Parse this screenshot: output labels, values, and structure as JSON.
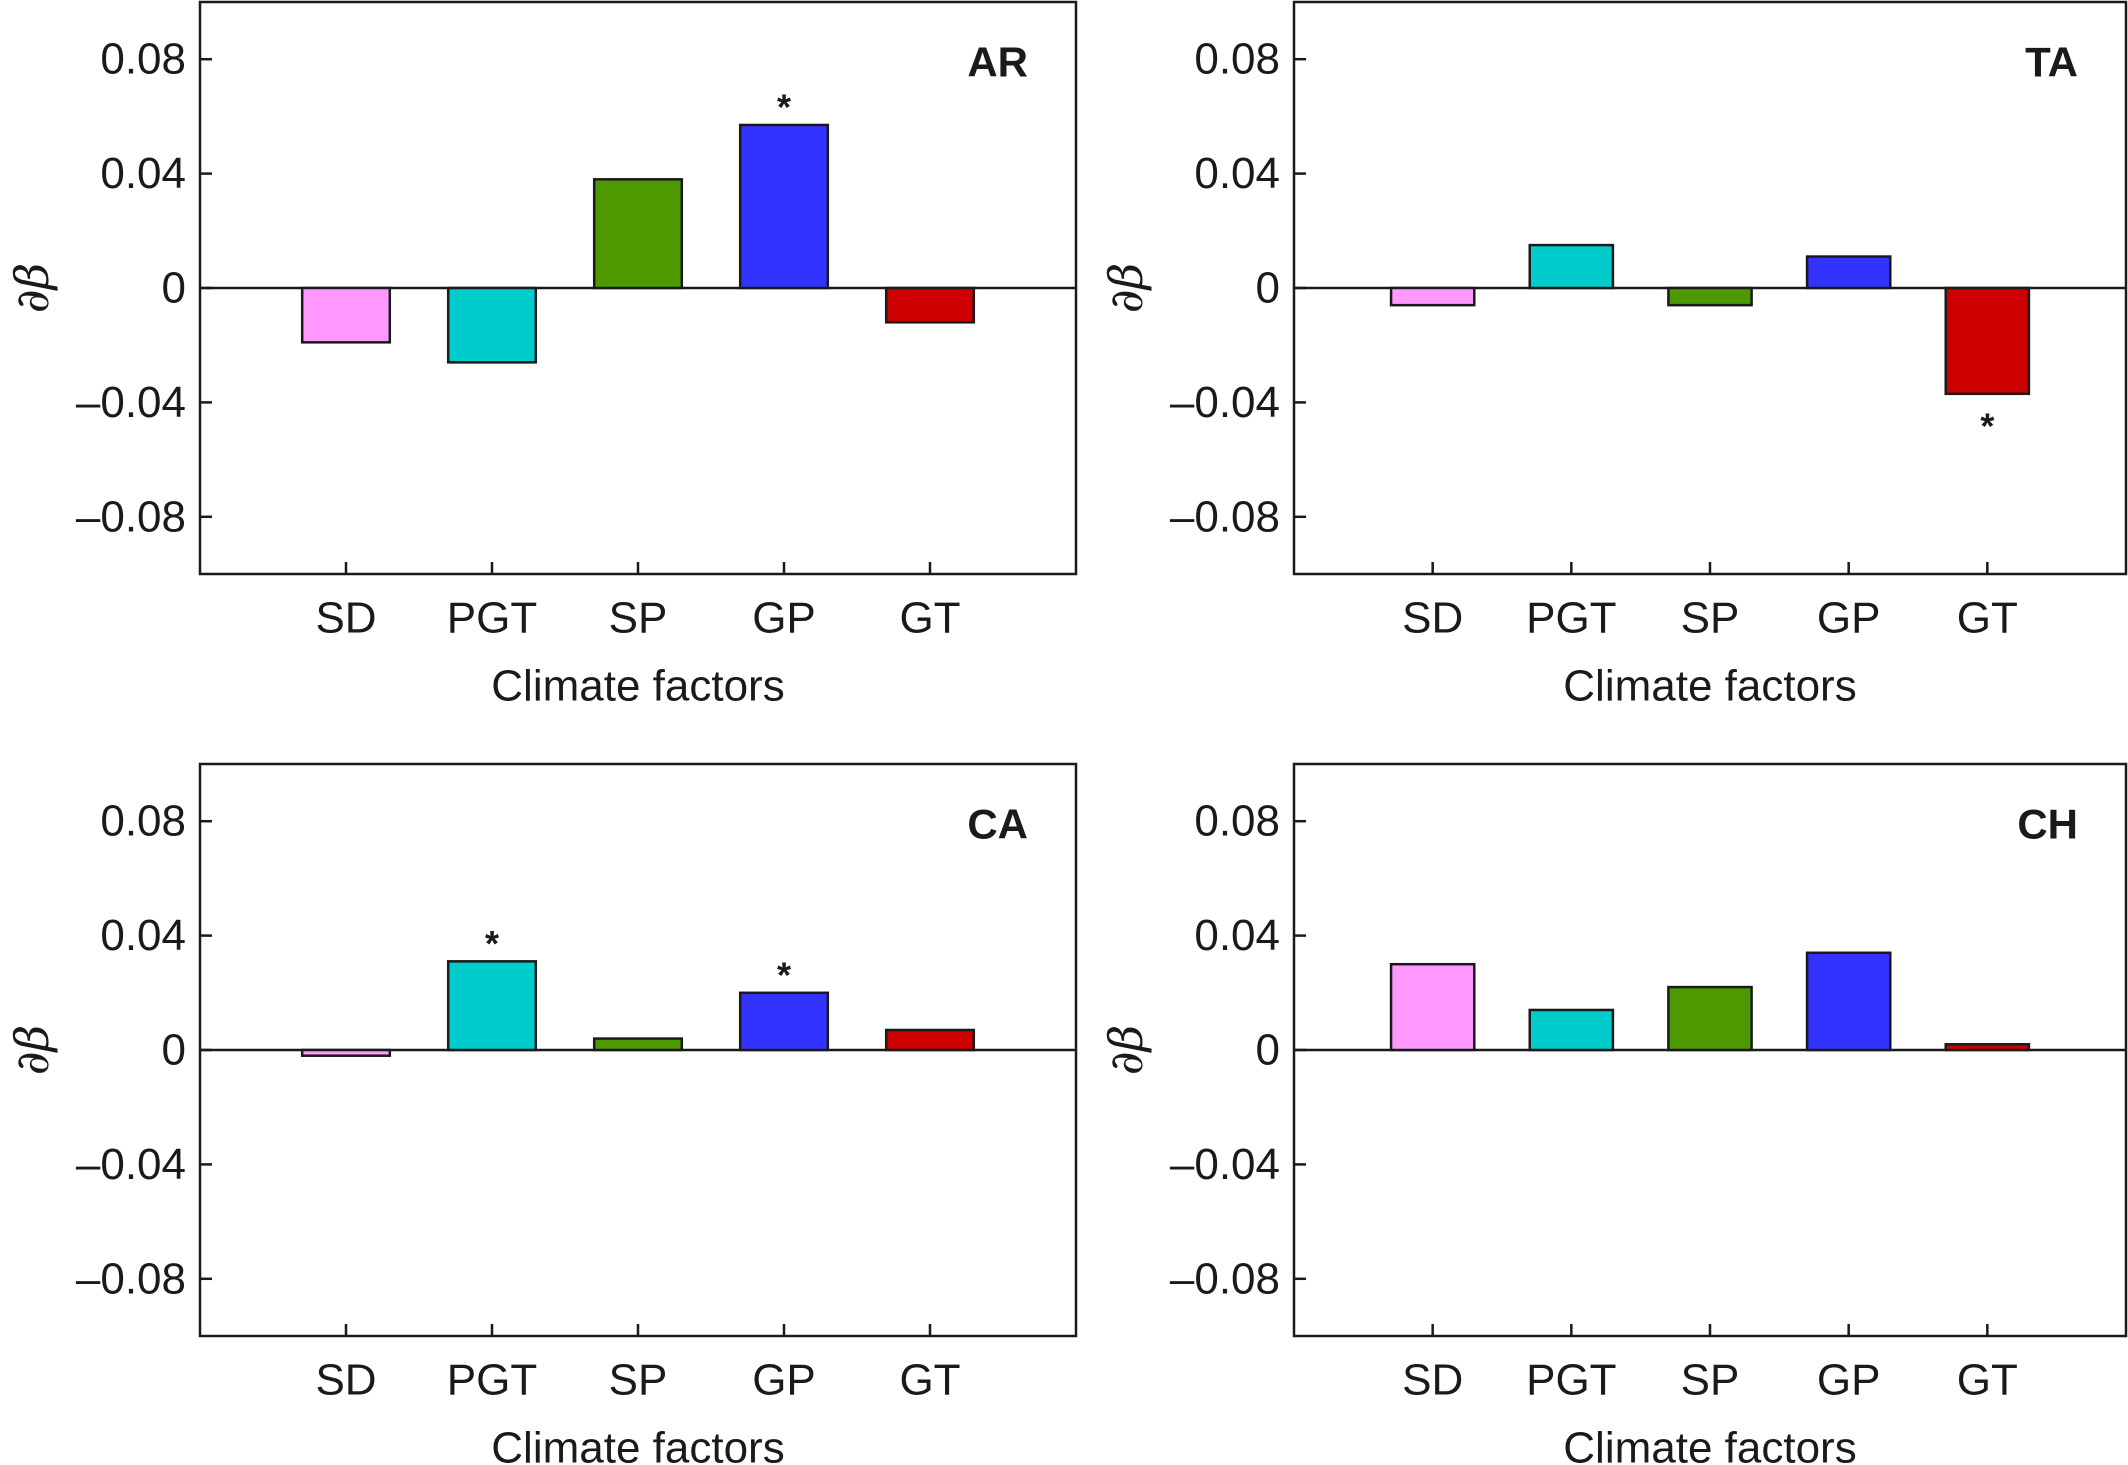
{
  "chart_data": [
    {
      "type": "bar",
      "panel": "AR",
      "categories": [
        "SD",
        "PGT",
        "SP",
        "GP",
        "GT"
      ],
      "values": [
        -0.019,
        -0.026,
        0.038,
        0.057,
        -0.012
      ],
      "significant": [
        false,
        false,
        false,
        true,
        false
      ],
      "xlabel": "Climate factors",
      "ylabel": "∂β",
      "ylim": [
        -0.1,
        0.1
      ],
      "yticks": [
        0.08,
        0.04,
        0,
        -0.04,
        -0.08
      ],
      "ytick_labels": [
        "0.08",
        "0.04",
        "0",
        "–0.04",
        "–0.08"
      ]
    },
    {
      "type": "bar",
      "panel": "TA",
      "categories": [
        "SD",
        "PGT",
        "SP",
        "GP",
        "GT"
      ],
      "values": [
        -0.006,
        0.015,
        -0.006,
        0.011,
        -0.037
      ],
      "significant": [
        false,
        false,
        false,
        false,
        true
      ],
      "xlabel": "Climate factors",
      "ylabel": "∂β",
      "ylim": [
        -0.1,
        0.1
      ],
      "yticks": [
        0.08,
        0.04,
        0,
        -0.04,
        -0.08
      ],
      "ytick_labels": [
        "0.08",
        "0.04",
        "0",
        "–0.04",
        "–0.08"
      ]
    },
    {
      "type": "bar",
      "panel": "CA",
      "categories": [
        "SD",
        "PGT",
        "SP",
        "GP",
        "GT"
      ],
      "values": [
        -0.002,
        0.031,
        0.004,
        0.02,
        0.007
      ],
      "significant": [
        false,
        true,
        false,
        true,
        false
      ],
      "xlabel": "Climate factors",
      "ylabel": "∂β",
      "ylim": [
        -0.1,
        0.1
      ],
      "yticks": [
        0.08,
        0.04,
        0,
        -0.04,
        -0.08
      ],
      "ytick_labels": [
        "0.08",
        "0.04",
        "0",
        "–0.04",
        "–0.08"
      ]
    },
    {
      "type": "bar",
      "panel": "CH",
      "categories": [
        "SD",
        "PGT",
        "SP",
        "GP",
        "GT"
      ],
      "values": [
        0.03,
        0.014,
        0.022,
        0.034,
        0.002
      ],
      "significant": [
        false,
        false,
        false,
        false,
        false
      ],
      "xlabel": "Climate factors",
      "ylabel": "∂β",
      "ylim": [
        -0.1,
        0.1
      ],
      "yticks": [
        0.08,
        0.04,
        0,
        -0.04,
        -0.08
      ],
      "ytick_labels": [
        "0.08",
        "0.04",
        "0",
        "–0.04",
        "–0.08"
      ]
    }
  ],
  "bar_colors": [
    "#ff99ff",
    "#00cccc",
    "#4c9900",
    "#3333ff",
    "#cc0000"
  ],
  "significance_marker": "*"
}
